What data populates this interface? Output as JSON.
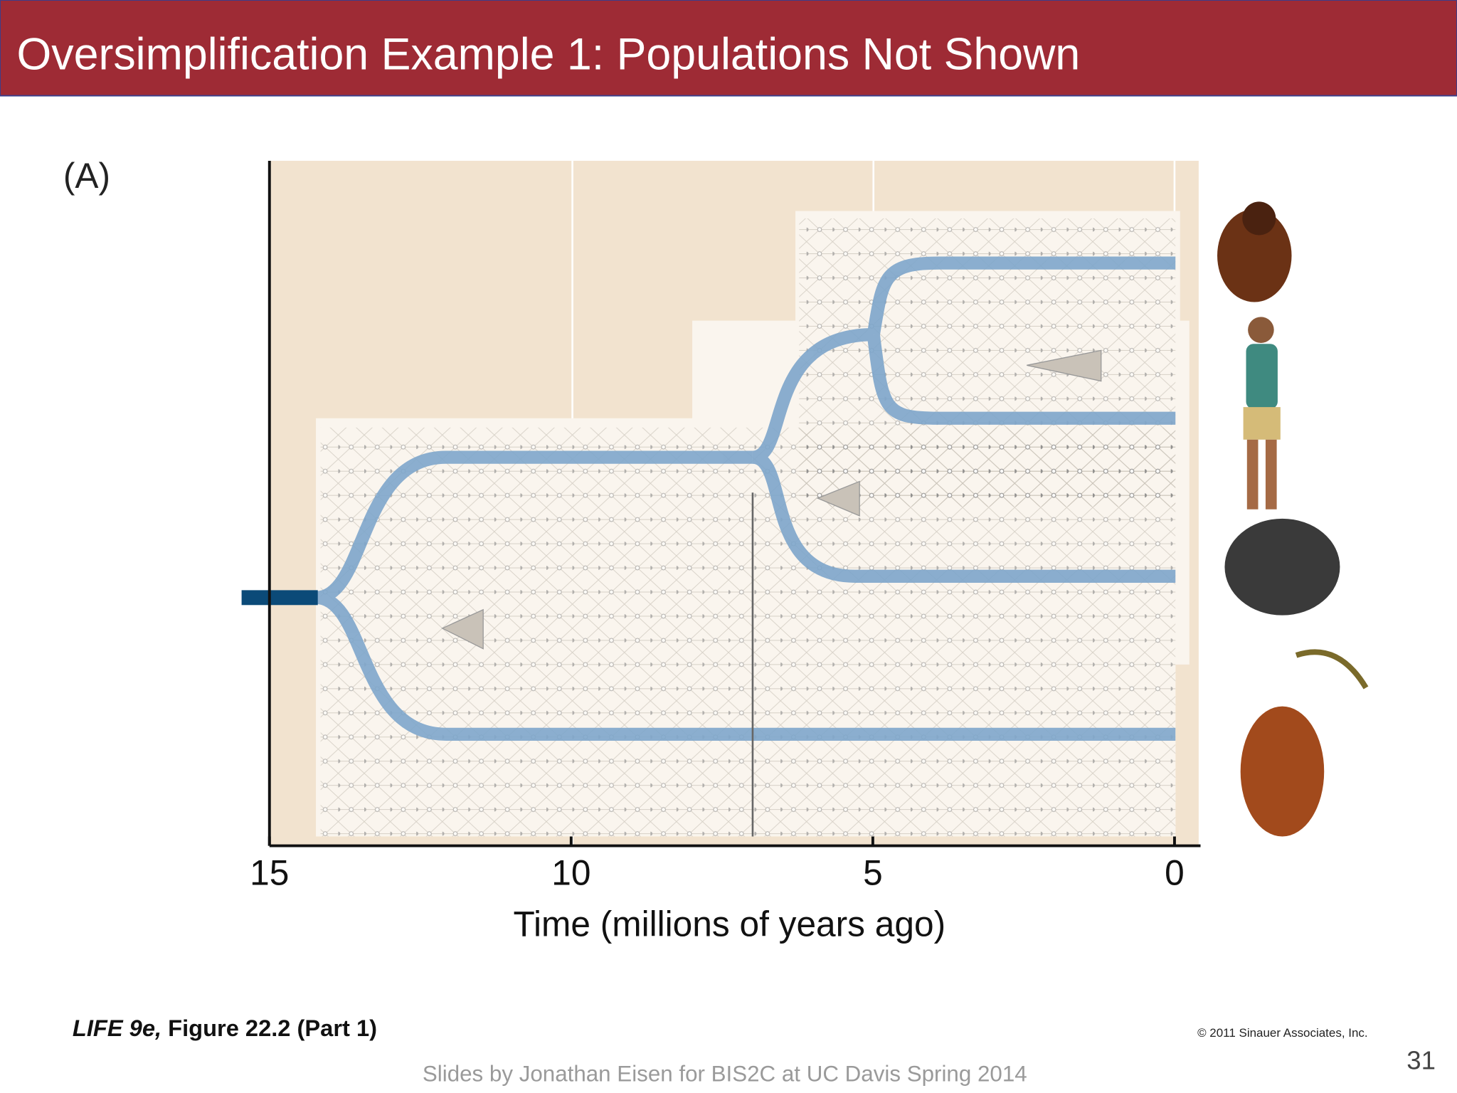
{
  "header": {
    "title": "Oversimplification Example 1: Populations Not Shown"
  },
  "figure": {
    "panel": "(A)",
    "xticks": [
      15,
      10,
      5,
      0
    ],
    "xlabel": "Time (millions of years ago)"
  },
  "caption": {
    "book": "LIFE 9e,",
    "figure": "Figure 22.2 (Part 1)"
  },
  "copyright": "© 2011 Sinauer Associates, Inc.",
  "footer": "Slides by Jonathan Eisen for BIS2C at UC Davis Spring 2014",
  "page_number": "31"
}
